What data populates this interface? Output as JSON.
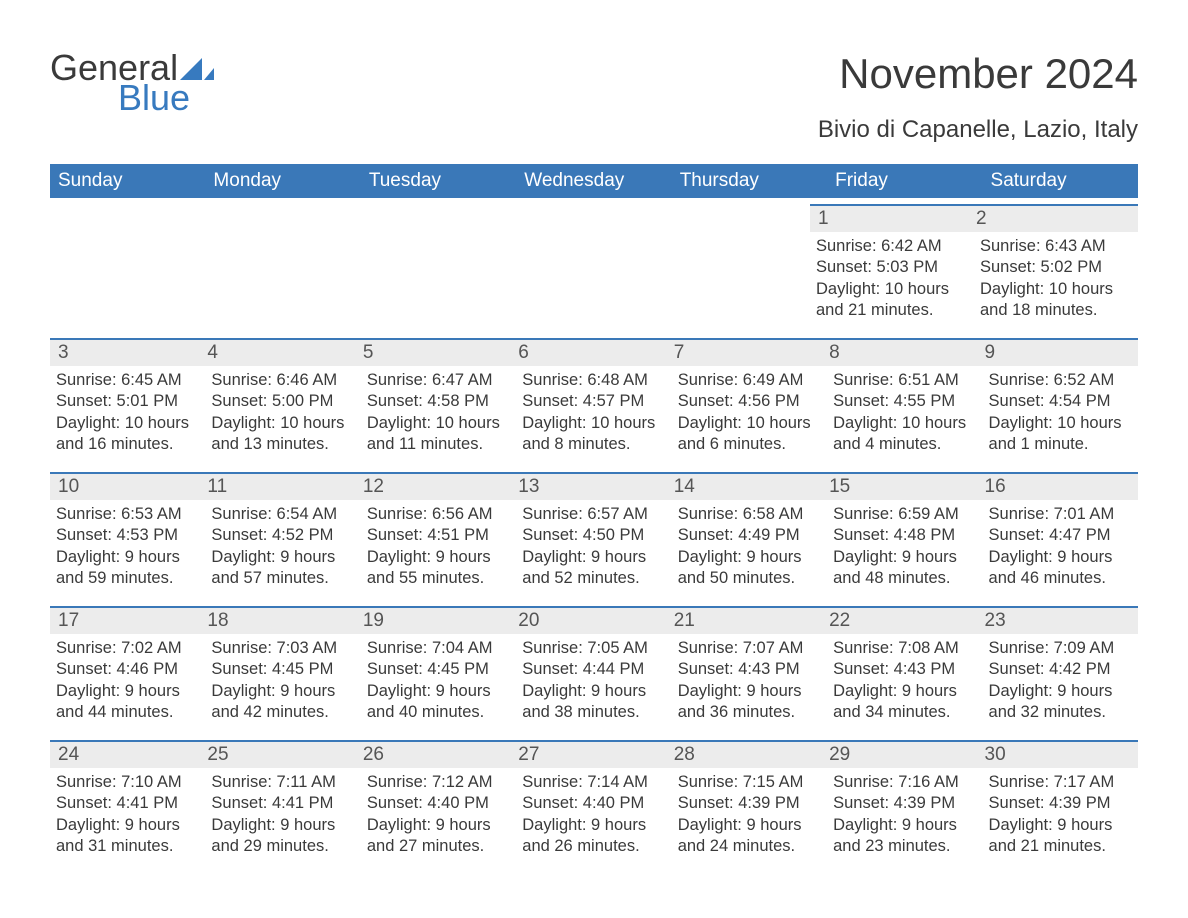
{
  "logo": {
    "general": "General",
    "blue": "Blue"
  },
  "header": {
    "title": "November 2024",
    "location": "Bivio di Capanelle, Lazio, Italy"
  },
  "colors": {
    "header_bg": "#3a78b8",
    "header_text": "#ffffff",
    "bar_bg": "#ececec",
    "bar_border": "#3a78b8",
    "text": "#3a3a3a",
    "logo_blue": "#377abf",
    "page_bg": "#ffffff"
  },
  "weekdays": [
    "Sunday",
    "Monday",
    "Tuesday",
    "Wednesday",
    "Thursday",
    "Friday",
    "Saturday"
  ],
  "weeks": [
    [
      null,
      null,
      null,
      null,
      null,
      {
        "n": "1",
        "sr": "Sunrise: 6:42 AM",
        "ss": "Sunset: 5:03 PM",
        "d1": "Daylight: 10 hours",
        "d2": "and 21 minutes."
      },
      {
        "n": "2",
        "sr": "Sunrise: 6:43 AM",
        "ss": "Sunset: 5:02 PM",
        "d1": "Daylight: 10 hours",
        "d2": "and 18 minutes."
      }
    ],
    [
      {
        "n": "3",
        "sr": "Sunrise: 6:45 AM",
        "ss": "Sunset: 5:01 PM",
        "d1": "Daylight: 10 hours",
        "d2": "and 16 minutes."
      },
      {
        "n": "4",
        "sr": "Sunrise: 6:46 AM",
        "ss": "Sunset: 5:00 PM",
        "d1": "Daylight: 10 hours",
        "d2": "and 13 minutes."
      },
      {
        "n": "5",
        "sr": "Sunrise: 6:47 AM",
        "ss": "Sunset: 4:58 PM",
        "d1": "Daylight: 10 hours",
        "d2": "and 11 minutes."
      },
      {
        "n": "6",
        "sr": "Sunrise: 6:48 AM",
        "ss": "Sunset: 4:57 PM",
        "d1": "Daylight: 10 hours",
        "d2": "and 8 minutes."
      },
      {
        "n": "7",
        "sr": "Sunrise: 6:49 AM",
        "ss": "Sunset: 4:56 PM",
        "d1": "Daylight: 10 hours",
        "d2": "and 6 minutes."
      },
      {
        "n": "8",
        "sr": "Sunrise: 6:51 AM",
        "ss": "Sunset: 4:55 PM",
        "d1": "Daylight: 10 hours",
        "d2": "and 4 minutes."
      },
      {
        "n": "9",
        "sr": "Sunrise: 6:52 AM",
        "ss": "Sunset: 4:54 PM",
        "d1": "Daylight: 10 hours",
        "d2": "and 1 minute."
      }
    ],
    [
      {
        "n": "10",
        "sr": "Sunrise: 6:53 AM",
        "ss": "Sunset: 4:53 PM",
        "d1": "Daylight: 9 hours",
        "d2": "and 59 minutes."
      },
      {
        "n": "11",
        "sr": "Sunrise: 6:54 AM",
        "ss": "Sunset: 4:52 PM",
        "d1": "Daylight: 9 hours",
        "d2": "and 57 minutes."
      },
      {
        "n": "12",
        "sr": "Sunrise: 6:56 AM",
        "ss": "Sunset: 4:51 PM",
        "d1": "Daylight: 9 hours",
        "d2": "and 55 minutes."
      },
      {
        "n": "13",
        "sr": "Sunrise: 6:57 AM",
        "ss": "Sunset: 4:50 PM",
        "d1": "Daylight: 9 hours",
        "d2": "and 52 minutes."
      },
      {
        "n": "14",
        "sr": "Sunrise: 6:58 AM",
        "ss": "Sunset: 4:49 PM",
        "d1": "Daylight: 9 hours",
        "d2": "and 50 minutes."
      },
      {
        "n": "15",
        "sr": "Sunrise: 6:59 AM",
        "ss": "Sunset: 4:48 PM",
        "d1": "Daylight: 9 hours",
        "d2": "and 48 minutes."
      },
      {
        "n": "16",
        "sr": "Sunrise: 7:01 AM",
        "ss": "Sunset: 4:47 PM",
        "d1": "Daylight: 9 hours",
        "d2": "and 46 minutes."
      }
    ],
    [
      {
        "n": "17",
        "sr": "Sunrise: 7:02 AM",
        "ss": "Sunset: 4:46 PM",
        "d1": "Daylight: 9 hours",
        "d2": "and 44 minutes."
      },
      {
        "n": "18",
        "sr": "Sunrise: 7:03 AM",
        "ss": "Sunset: 4:45 PM",
        "d1": "Daylight: 9 hours",
        "d2": "and 42 minutes."
      },
      {
        "n": "19",
        "sr": "Sunrise: 7:04 AM",
        "ss": "Sunset: 4:45 PM",
        "d1": "Daylight: 9 hours",
        "d2": "and 40 minutes."
      },
      {
        "n": "20",
        "sr": "Sunrise: 7:05 AM",
        "ss": "Sunset: 4:44 PM",
        "d1": "Daylight: 9 hours",
        "d2": "and 38 minutes."
      },
      {
        "n": "21",
        "sr": "Sunrise: 7:07 AM",
        "ss": "Sunset: 4:43 PM",
        "d1": "Daylight: 9 hours",
        "d2": "and 36 minutes."
      },
      {
        "n": "22",
        "sr": "Sunrise: 7:08 AM",
        "ss": "Sunset: 4:43 PM",
        "d1": "Daylight: 9 hours",
        "d2": "and 34 minutes."
      },
      {
        "n": "23",
        "sr": "Sunrise: 7:09 AM",
        "ss": "Sunset: 4:42 PM",
        "d1": "Daylight: 9 hours",
        "d2": "and 32 minutes."
      }
    ],
    [
      {
        "n": "24",
        "sr": "Sunrise: 7:10 AM",
        "ss": "Sunset: 4:41 PM",
        "d1": "Daylight: 9 hours",
        "d2": "and 31 minutes."
      },
      {
        "n": "25",
        "sr": "Sunrise: 7:11 AM",
        "ss": "Sunset: 4:41 PM",
        "d1": "Daylight: 9 hours",
        "d2": "and 29 minutes."
      },
      {
        "n": "26",
        "sr": "Sunrise: 7:12 AM",
        "ss": "Sunset: 4:40 PM",
        "d1": "Daylight: 9 hours",
        "d2": "and 27 minutes."
      },
      {
        "n": "27",
        "sr": "Sunrise: 7:14 AM",
        "ss": "Sunset: 4:40 PM",
        "d1": "Daylight: 9 hours",
        "d2": "and 26 minutes."
      },
      {
        "n": "28",
        "sr": "Sunrise: 7:15 AM",
        "ss": "Sunset: 4:39 PM",
        "d1": "Daylight: 9 hours",
        "d2": "and 24 minutes."
      },
      {
        "n": "29",
        "sr": "Sunrise: 7:16 AM",
        "ss": "Sunset: 4:39 PM",
        "d1": "Daylight: 9 hours",
        "d2": "and 23 minutes."
      },
      {
        "n": "30",
        "sr": "Sunrise: 7:17 AM",
        "ss": "Sunset: 4:39 PM",
        "d1": "Daylight: 9 hours",
        "d2": "and 21 minutes."
      }
    ]
  ]
}
